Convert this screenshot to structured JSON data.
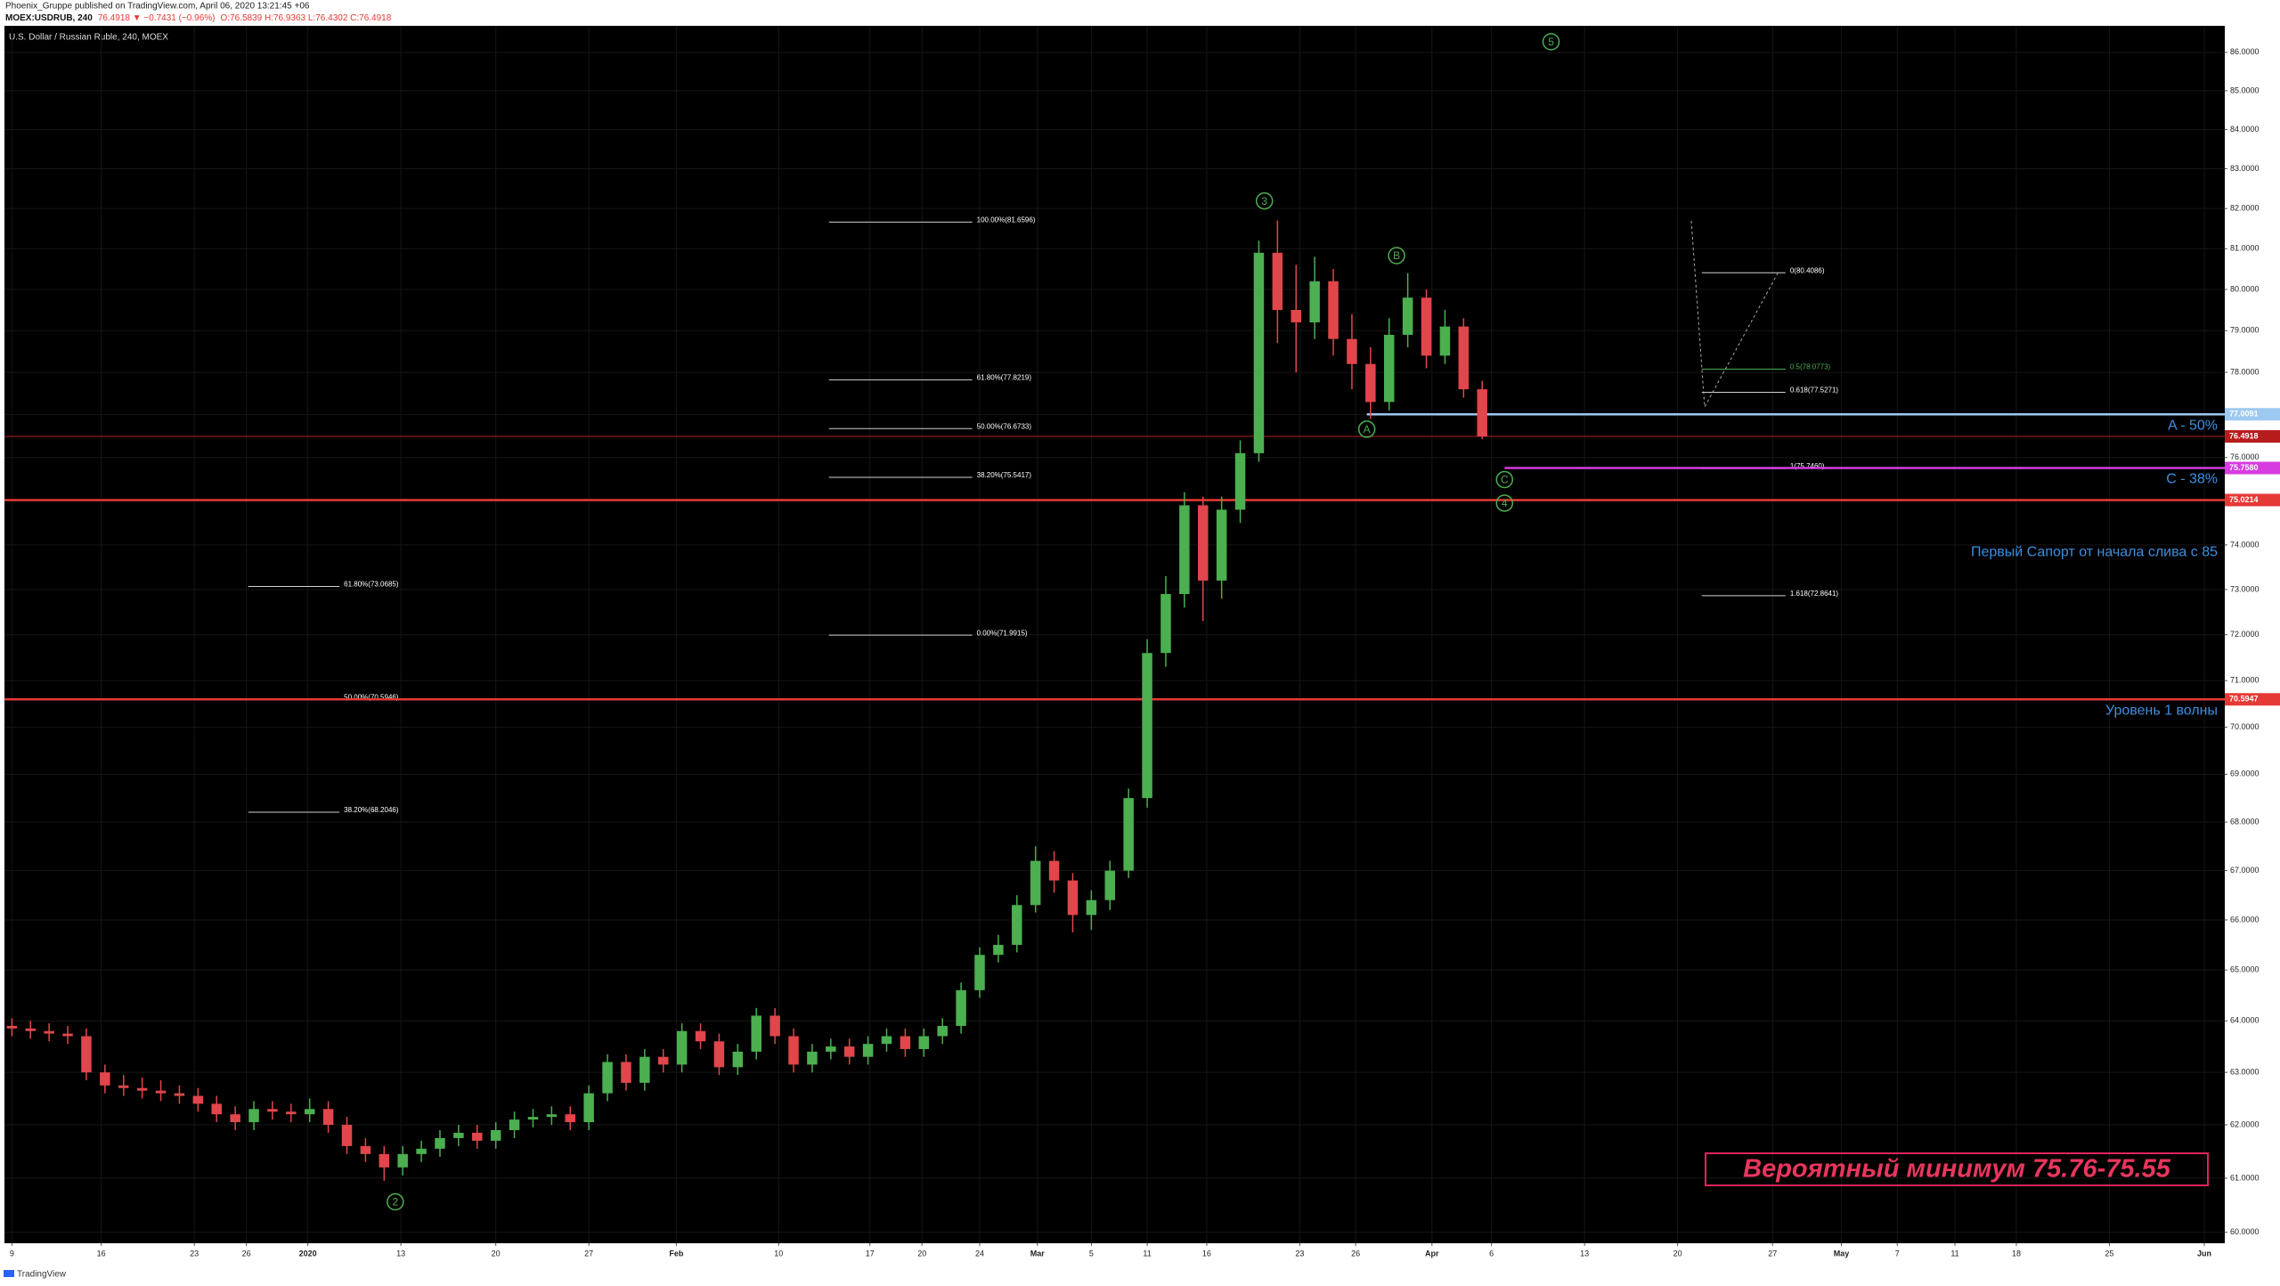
{
  "header": {
    "publisher": "Phoenix_Gruppe published on TradingView.com, April 06, 2020 13:21:45 +06",
    "symbol": "MOEX:USDRUB, 240",
    "quote": "76.4918 ▼ −0.7431 (−0.96%)",
    "ohlc": "O:76.5839 H:76.9363 L:76.4302 C:76.4918"
  },
  "footer": "TradingView",
  "chart_data": {
    "type": "candlestick",
    "title": "U.S. Dollar / Russian Ruble, 240, MOEX",
    "up_color": "#4caf50",
    "down_color": "#e0464b",
    "open": [
      63.9,
      63.85,
      63.8,
      63.75,
      63.7,
      63.0,
      62.75,
      62.7,
      62.65,
      62.6,
      62.55,
      62.4,
      62.2,
      62.05,
      62.3,
      62.25,
      62.2,
      62.3,
      62.0,
      61.6,
      61.45,
      61.2,
      61.45,
      61.55,
      61.75,
      61.85,
      61.7,
      61.9,
      62.1,
      62.15,
      62.2,
      62.05,
      62.6,
      63.2,
      62.8,
      63.3,
      63.15,
      63.8,
      63.6,
      63.1,
      63.4,
      64.1,
      63.7,
      63.15,
      63.4,
      63.5,
      63.3,
      63.55,
      63.7,
      63.45,
      63.7,
      63.9,
      64.6,
      65.3,
      65.5,
      66.3,
      67.2,
      66.8,
      66.1,
      66.4,
      67.0,
      68.5,
      71.6,
      72.9,
      74.9,
      73.2,
      74.8,
      76.1,
      80.9,
      79.5,
      79.2,
      80.2,
      78.8,
      78.2,
      77.3,
      78.9,
      79.8,
      78.4,
      79.1,
      77.6
    ],
    "high": [
      64.05,
      64.0,
      63.95,
      63.9,
      63.85,
      63.15,
      62.95,
      62.9,
      62.85,
      62.75,
      62.7,
      62.55,
      62.35,
      62.45,
      62.45,
      62.4,
      62.5,
      62.45,
      62.15,
      61.75,
      61.6,
      61.6,
      61.7,
      61.9,
      62.0,
      62.0,
      62.05,
      62.25,
      62.3,
      62.35,
      62.35,
      62.75,
      63.35,
      63.35,
      63.45,
      63.45,
      63.95,
      63.95,
      63.75,
      63.55,
      64.25,
      64.25,
      63.85,
      63.55,
      63.65,
      63.65,
      63.7,
      63.85,
      63.85,
      63.85,
      64.05,
      64.75,
      65.45,
      65.7,
      66.5,
      67.5,
      67.4,
      66.95,
      66.6,
      67.2,
      68.7,
      71.9,
      73.3,
      75.2,
      75.1,
      75.1,
      76.4,
      81.2,
      81.7,
      80.6,
      80.8,
      80.5,
      79.4,
      78.6,
      79.3,
      80.4,
      80.0,
      79.5,
      79.3,
      77.8
    ],
    "low": [
      63.7,
      63.65,
      63.6,
      63.55,
      62.85,
      62.6,
      62.55,
      62.5,
      62.45,
      62.4,
      62.25,
      62.05,
      61.9,
      61.9,
      62.1,
      62.05,
      62.05,
      61.85,
      61.45,
      61.3,
      60.95,
      61.05,
      61.3,
      61.4,
      61.6,
      61.55,
      61.55,
      61.75,
      61.95,
      62.0,
      61.9,
      61.9,
      62.45,
      62.65,
      62.65,
      63.0,
      63.0,
      63.45,
      62.95,
      62.95,
      63.25,
      63.55,
      63.0,
      63.0,
      63.25,
      63.15,
      63.15,
      63.4,
      63.3,
      63.3,
      63.55,
      63.75,
      64.45,
      65.15,
      65.35,
      66.15,
      66.55,
      65.75,
      65.8,
      66.2,
      66.85,
      68.3,
      71.3,
      72.6,
      72.3,
      72.8,
      74.5,
      75.9,
      78.7,
      78.0,
      78.8,
      78.4,
      77.6,
      76.9,
      77.1,
      78.6,
      78.1,
      78.2,
      77.4,
      76.43
    ],
    "close": [
      63.85,
      63.8,
      63.75,
      63.7,
      63.0,
      62.75,
      62.7,
      62.65,
      62.6,
      62.55,
      62.4,
      62.2,
      62.05,
      62.3,
      62.25,
      62.2,
      62.3,
      62.0,
      61.6,
      61.45,
      61.2,
      61.45,
      61.55,
      61.75,
      61.85,
      61.7,
      61.9,
      62.1,
      62.15,
      62.2,
      62.05,
      62.6,
      63.2,
      62.8,
      63.3,
      63.15,
      63.8,
      63.6,
      63.1,
      63.4,
      64.1,
      63.7,
      63.15,
      63.4,
      63.5,
      63.3,
      63.55,
      63.7,
      63.45,
      63.7,
      63.9,
      64.6,
      65.3,
      65.5,
      66.3,
      67.2,
      66.8,
      66.1,
      66.4,
      67.0,
      68.5,
      71.6,
      72.9,
      74.9,
      73.2,
      74.8,
      76.1,
      80.9,
      79.5,
      79.2,
      80.2,
      78.8,
      78.2,
      77.3,
      78.9,
      79.8,
      78.4,
      79.1,
      77.6,
      76.49
    ],
    "log_scale": true,
    "grid": true,
    "ylim": [
      59.8,
      86.7
    ],
    "yticks": [
      {
        "value": 60,
        "label": "60.0000"
      },
      {
        "value": 61,
        "label": "61.0000"
      },
      {
        "value": 62,
        "label": "62.0000"
      },
      {
        "value": 63,
        "label": "63.0000"
      },
      {
        "value": 64,
        "label": "64.0000"
      },
      {
        "value": 65,
        "label": "65.0000"
      },
      {
        "value": 66,
        "label": "66.0000"
      },
      {
        "value": 67,
        "label": "67.0000"
      },
      {
        "value": 68,
        "label": "68.0000"
      },
      {
        "value": 69,
        "label": "69.0000"
      },
      {
        "value": 70,
        "label": "70.0000"
      },
      {
        "value": 71,
        "label": "71.0000"
      },
      {
        "value": 72,
        "label": "72.0000"
      },
      {
        "value": 73,
        "label": "73.0000"
      },
      {
        "value": 74,
        "label": "74.0000"
      },
      {
        "value": 75,
        "label": "75.0000"
      },
      {
        "value": 76,
        "label": "76.0000"
      },
      {
        "value": 77,
        "label": "77.0000"
      },
      {
        "value": 78,
        "label": "78.0000"
      },
      {
        "value": 79,
        "label": "79.0000"
      },
      {
        "value": 80,
        "label": "80.0000"
      },
      {
        "value": 81,
        "label": "81.0000"
      },
      {
        "value": 82,
        "label": "82.0000"
      },
      {
        "value": 83,
        "label": "83.0000"
      },
      {
        "value": 84,
        "label": "84.0000"
      },
      {
        "value": 85,
        "label": "85.0000"
      },
      {
        "value": 86,
        "label": "86.0000"
      }
    ],
    "xlim": [
      -0.4,
      118.9
    ],
    "xticks": [
      {
        "value": 0,
        "label": "9"
      },
      {
        "value": 4.8,
        "label": "16"
      },
      {
        "value": 9.8,
        "label": "23"
      },
      {
        "value": 12.6,
        "label": "26"
      },
      {
        "value": 15.9,
        "label": "2020"
      },
      {
        "value": 20.9,
        "label": "13"
      },
      {
        "value": 26,
        "label": "20"
      },
      {
        "value": 31,
        "label": "27"
      },
      {
        "value": 35.7,
        "label": "Feb"
      },
      {
        "value": 41.2,
        "label": "10"
      },
      {
        "value": 46.1,
        "label": "17"
      },
      {
        "value": 48.9,
        "label": "20"
      },
      {
        "value": 52,
        "label": "24"
      },
      {
        "value": 55.1,
        "label": "Mar"
      },
      {
        "value": 58,
        "label": "5"
      },
      {
        "value": 61,
        "label": "11"
      },
      {
        "value": 64.2,
        "label": "16"
      },
      {
        "value": 69.2,
        "label": "23"
      },
      {
        "value": 72.2,
        "label": "26"
      },
      {
        "value": 76.3,
        "label": "Apr"
      },
      {
        "value": 79.5,
        "label": "6"
      },
      {
        "value": 84.5,
        "label": "13"
      },
      {
        "value": 89.5,
        "label": "20"
      },
      {
        "value": 94.6,
        "label": "27"
      },
      {
        "value": 98.3,
        "label": "May"
      },
      {
        "value": 101.3,
        "label": "7"
      },
      {
        "value": 104.4,
        "label": "11"
      },
      {
        "value": 107.7,
        "label": "18"
      },
      {
        "value": 112.7,
        "label": "25"
      },
      {
        "value": 117.8,
        "label": "Jun"
      }
    ],
    "levels": [
      {
        "value": 77.0091,
        "label": "77.0091",
        "color": "#9ec9f0",
        "text": "A - 50%"
      },
      {
        "value": 76.4918,
        "label": "76.4918",
        "color": "#b71c1c"
      },
      {
        "value": 75.758,
        "label": "75.7580",
        "color": "#d63ce0",
        "text": "C - 38%"
      },
      {
        "value": 75.0214,
        "label": "75.0214",
        "color": "#e53935",
        "text": "Первый Сапорт от начала слива с 85"
      },
      {
        "value": 70.5947,
        "label": "70.5947",
        "color": "#e53935",
        "text": "Уровень 1 волны"
      }
    ],
    "level_text_color": "#3d8fe0",
    "fib": [
      [
        {
          "value": 81.6596,
          "label": "100.00%(81.6596)"
        },
        {
          "value": 77.8219,
          "label": "61.80%(77.8219)"
        },
        {
          "value": 76.6733,
          "label": "50.00%(76.6733)"
        },
        {
          "value": 75.5417,
          "label": "38.20%(75.5417)"
        },
        {
          "value": 71.9915,
          "label": "0.00%(71.9915)"
        }
      ],
      [
        {
          "value": 73.0685,
          "label": "61.80%(73.0685)"
        },
        {
          "value": 70.5946,
          "label": "50.00%(70.5946)"
        },
        {
          "value": 68.2046,
          "label": "38.20%(68.2046)"
        }
      ],
      [
        {
          "value": 80.4086,
          "label": "0(80.4086)"
        },
        {
          "value": 78.0773,
          "label": "0.5(78.0773)",
          "color": "#4caf50"
        },
        {
          "value": 77.5271,
          "label": "0.618(77.5271)"
        },
        {
          "value": 75.746,
          "label": "1(75.7460)"
        },
        {
          "value": 72.8641,
          "label": "1.618(72.8641)"
        }
      ]
    ],
    "wave_labels": [
      "2",
      "3",
      "5",
      "A",
      "B",
      "C",
      "4"
    ],
    "wave_color": "#4caf50",
    "annotation": "Вероятный минимум 75.76-75.55"
  }
}
